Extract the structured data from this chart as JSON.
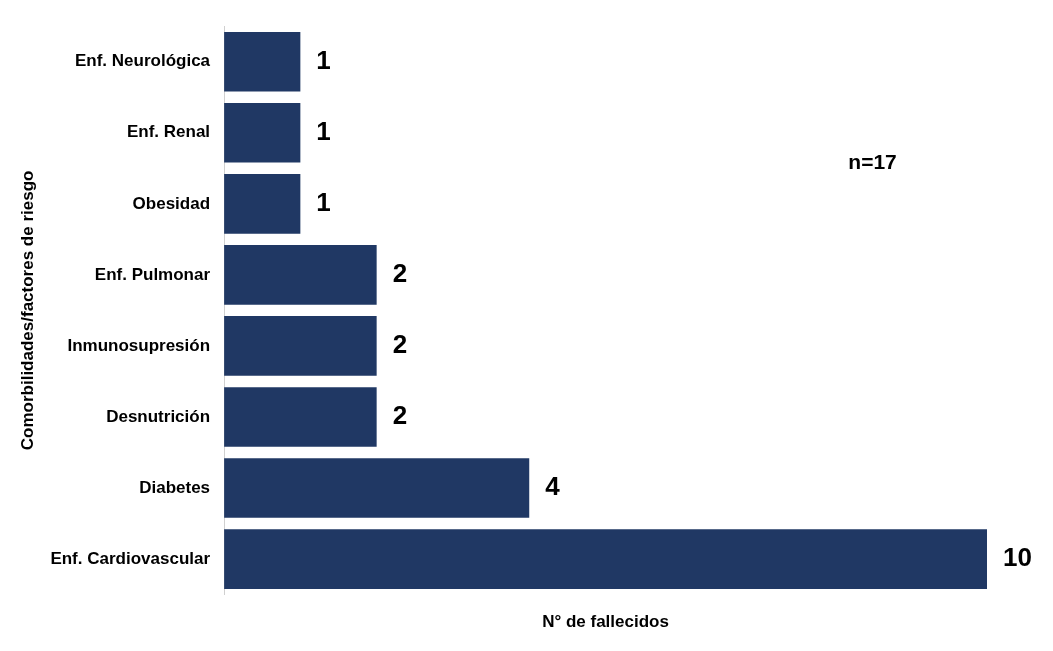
{
  "chart_data": {
    "type": "bar",
    "orientation": "horizontal",
    "xlabel": "N° de fallecidos",
    "ylabel": "Comorbilidades/factores de riesgo",
    "categories": [
      "Enf. Neurológica",
      "Enf. Renal",
      "Obesidad",
      "Enf. Pulmonar",
      "Inmunosupresión",
      "Desnutrición",
      "Diabetes",
      "Enf. Cardiovascular"
    ],
    "values": [
      1,
      1,
      1,
      2,
      2,
      2,
      4,
      10
    ],
    "color": "#203864",
    "data_labels": true,
    "grid": false,
    "legend": false,
    "tick_labels": "y",
    "annotations": [
      "n=17"
    ]
  }
}
